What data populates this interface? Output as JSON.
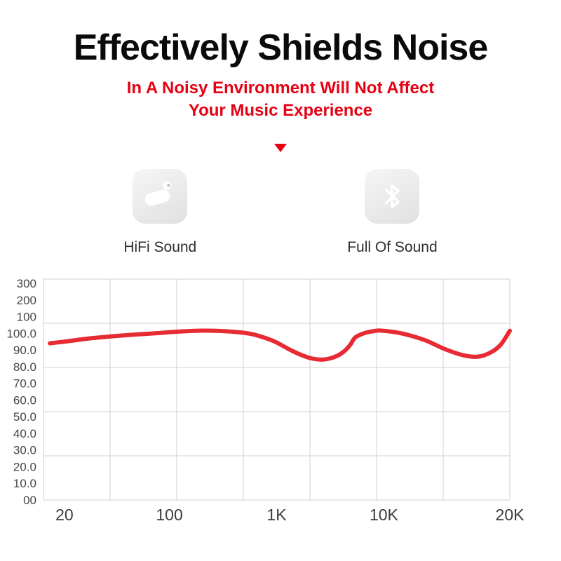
{
  "page": {
    "title": "Effectively Shields Noise",
    "subtitle_line1": "In A Noisy Environment Will Not Affect",
    "subtitle_line2": "Your Music Experience"
  },
  "features": [
    {
      "icon": "earbud-icon",
      "label": "HiFi Sound"
    },
    {
      "icon": "bluetooth-icon",
      "label": "Full Of Sound"
    }
  ],
  "colors": {
    "accent_red": "#e60012",
    "curve_red": "#e62b33",
    "grid": "#d2d2d2",
    "axis_label": "#454545",
    "x_label": "#3c3c3c",
    "title_black": "#0a0a0a"
  },
  "chart_data": {
    "type": "line",
    "title": "",
    "xlabel": "",
    "ylabel": "",
    "x_scale": "log-approx",
    "x_ticks": [
      {
        "f": 20,
        "label": "20",
        "pos_pct": 4.5
      },
      {
        "f": 100,
        "label": "100",
        "pos_pct": 27
      },
      {
        "f": 1000,
        "label": "1K",
        "pos_pct": 50
      },
      {
        "f": 10000,
        "label": "10K",
        "pos_pct": 73
      },
      {
        "f": 20000,
        "label": "20K",
        "pos_pct": 100
      }
    ],
    "y_ticks": [
      "300",
      "200",
      "100",
      "100.0",
      "90.0",
      "80.0",
      "70.0",
      "60.0",
      "50.0",
      "40.0",
      "30.0",
      "20.0",
      "10.0",
      "00"
    ],
    "db_tick_start_index": 3,
    "db_at_start_index": 100,
    "db_per_tick": 10,
    "grid": {
      "v_lines": 8,
      "h_lines": 6
    },
    "series": [
      {
        "name": "frequency-response",
        "points": [
          [
            16,
            94
          ],
          [
            20,
            95
          ],
          [
            30,
            97
          ],
          [
            50,
            98.8
          ],
          [
            80,
            100
          ],
          [
            120,
            101
          ],
          [
            200,
            101.6
          ],
          [
            300,
            101.4
          ],
          [
            450,
            100.6
          ],
          [
            600,
            99.4
          ],
          [
            800,
            97
          ],
          [
            1000,
            94.5
          ],
          [
            1300,
            90.5
          ],
          [
            1700,
            87
          ],
          [
            2100,
            85
          ],
          [
            2600,
            84.2
          ],
          [
            3100,
            84.8
          ],
          [
            3800,
            87
          ],
          [
            4400,
            90
          ],
          [
            4900,
            93.5
          ],
          [
            5400,
            97.5
          ],
          [
            6500,
            100
          ],
          [
            8000,
            101.3
          ],
          [
            9500,
            101.6
          ],
          [
            11000,
            100
          ],
          [
            12500,
            96
          ],
          [
            14000,
            90.5
          ],
          [
            15500,
            86.8
          ],
          [
            16800,
            86
          ],
          [
            18000,
            88.5
          ],
          [
            19000,
            93
          ],
          [
            20000,
            101.5
          ]
        ]
      }
    ]
  }
}
